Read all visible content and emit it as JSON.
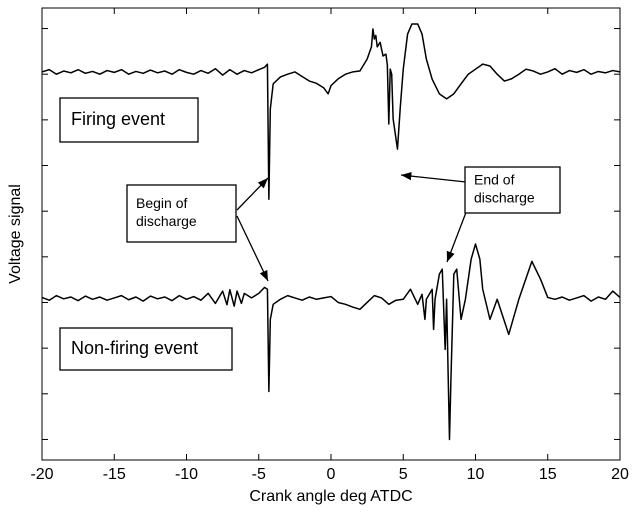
{
  "chart_data": {
    "type": "line",
    "xlabel": "Crank angle  deg ATDC",
    "ylabel": "Voltage signal",
    "xlim": [
      -20,
      20
    ],
    "xticks": [
      -20,
      -15,
      -10,
      -5,
      0,
      5,
      10,
      15,
      20
    ],
    "ylim": [
      -0.45,
      9.45
    ],
    "yticks": [
      0,
      1,
      2,
      3,
      4,
      5,
      6,
      7,
      8,
      9
    ],
    "series": [
      {
        "color": "#000000",
        "x": [
          -20,
          -19.5,
          -19,
          -18.5,
          -18,
          -17.5,
          -17,
          -16.5,
          -16,
          -15.5,
          -15,
          -14.5,
          -14,
          -13.5,
          -13,
          -12.5,
          -12,
          -11.5,
          -11,
          -10.5,
          -10,
          -9.5,
          -9,
          -8.5,
          -8,
          -7.5,
          -7,
          -6.5,
          -6,
          -5.5,
          -5,
          -4.6,
          -4.4,
          -4.3,
          -4.2,
          -4,
          -3.5,
          -3,
          -2.5,
          -2,
          -1.5,
          -1,
          -0.5,
          -0.2,
          0,
          0.5,
          1,
          1.5,
          2,
          2.5,
          2.8,
          2.9,
          3,
          3.1,
          3.2,
          3.4,
          3.6,
          3.8,
          3.9,
          4,
          4.1,
          4.2,
          4.3,
          4.6,
          4.8,
          5,
          5.3,
          5.6,
          6,
          6.3,
          6.6,
          7,
          7.5,
          8,
          8.5,
          9,
          9.5,
          10,
          10.5,
          11,
          11.5,
          12,
          12.5,
          13,
          13.5,
          14,
          14.5,
          15,
          15.5,
          16,
          16.5,
          17,
          17.5,
          18,
          18.5,
          19,
          19.5,
          20
        ],
        "values": [
          8.05,
          8.1,
          8.0,
          8.07,
          8.03,
          8.1,
          8.02,
          8.06,
          8.0,
          8.08,
          8.04,
          8.1,
          8.0,
          8.06,
          8.02,
          8.09,
          8.03,
          8.07,
          8.0,
          8.1,
          8.04,
          8.0,
          8.08,
          8.02,
          8.12,
          7.98,
          8.1,
          8.0,
          8.08,
          8.03,
          8.1,
          8.15,
          8.22,
          5.26,
          7.24,
          7.79,
          7.94,
          8.0,
          8.05,
          7.95,
          7.85,
          7.8,
          7.7,
          7.57,
          7.75,
          7.9,
          8.0,
          8.05,
          8.07,
          8.33,
          8.6,
          8.99,
          8.77,
          8.85,
          8.6,
          8.7,
          8.4,
          8.44,
          8.2,
          6.91,
          8.11,
          8.0,
          7.02,
          6.36,
          7.3,
          8.11,
          8.88,
          9.1,
          9.1,
          8.88,
          8.33,
          7.89,
          7.57,
          7.46,
          7.57,
          7.79,
          8.0,
          8.11,
          8.22,
          8.18,
          8.0,
          7.85,
          7.9,
          8.0,
          8.11,
          8.07,
          8.0,
          8.05,
          8.12,
          8.0,
          8.08,
          8.04,
          8.1,
          8.0,
          8.06,
          8.03,
          8.08,
          8.05
        ]
      },
      {
        "color": "#000000",
        "x": [
          -20,
          -19.5,
          -19,
          -18.5,
          -18,
          -17.5,
          -17,
          -16.5,
          -16,
          -15.5,
          -15,
          -14.5,
          -14,
          -13.5,
          -13,
          -12.5,
          -12,
          -11.5,
          -11,
          -10.5,
          -10,
          -9.5,
          -9,
          -8.5,
          -8,
          -7.5,
          -7.2,
          -7,
          -6.7,
          -6.5,
          -6.2,
          -6,
          -5.5,
          -5,
          -4.6,
          -4.4,
          -4.3,
          -4.2,
          -4,
          -3.5,
          -3,
          -2.5,
          -2,
          -1.5,
          -1,
          -0.5,
          0,
          0.5,
          1,
          1.5,
          2,
          2.5,
          3,
          3.5,
          4,
          4.5,
          5,
          5.5,
          6,
          6.3,
          6.5,
          6.6,
          7,
          7.1,
          7.2,
          7.5,
          7.7,
          7.9,
          8,
          8.2,
          8.3,
          8.5,
          8.7,
          9,
          9.3,
          9.7,
          10,
          10.3,
          10.5,
          11,
          11.5,
          12.3,
          13,
          13.9,
          14.5,
          15,
          15.5,
          16,
          16.5,
          17,
          17.5,
          18,
          18.5,
          19,
          19.5,
          20
        ],
        "values": [
          3.11,
          3.05,
          3.15,
          3.08,
          3.12,
          3.04,
          3.14,
          3.07,
          3.12,
          3.05,
          3.1,
          3.15,
          3.06,
          3.12,
          3.03,
          3.14,
          3.08,
          3.12,
          3.04,
          3.15,
          3.07,
          3.13,
          3.05,
          3.2,
          2.98,
          3.25,
          2.95,
          3.28,
          2.92,
          3.25,
          2.98,
          3.2,
          3.1,
          3.2,
          3.33,
          3.29,
          1.05,
          2.63,
          2.96,
          3.07,
          3.15,
          3.1,
          3.05,
          3.12,
          3.07,
          3.1,
          3.13,
          3.0,
          2.96,
          2.9,
          2.85,
          3.0,
          3.15,
          3.1,
          2.96,
          3.05,
          3.07,
          3.29,
          2.96,
          3.18,
          2.63,
          3.07,
          3.29,
          2.41,
          3.07,
          3.62,
          3.73,
          1.97,
          3.07,
          0.0,
          1.32,
          3.62,
          3.73,
          2.63,
          3.07,
          3.95,
          4.28,
          3.95,
          3.29,
          2.63,
          3.07,
          2.3,
          3.07,
          3.9,
          3.51,
          3.11,
          3.07,
          3.12,
          3.05,
          3.1,
          3.15,
          3.03,
          3.12,
          3.07,
          3.25,
          3.11
        ]
      }
    ],
    "annotations": [
      {
        "lines": [
          "Firing event"
        ]
      },
      {
        "lines": [
          "Begin of",
          "discharge"
        ]
      },
      {
        "lines": [
          "End of",
          "discharge"
        ]
      },
      {
        "lines": [
          "Non-firing event"
        ]
      }
    ]
  }
}
